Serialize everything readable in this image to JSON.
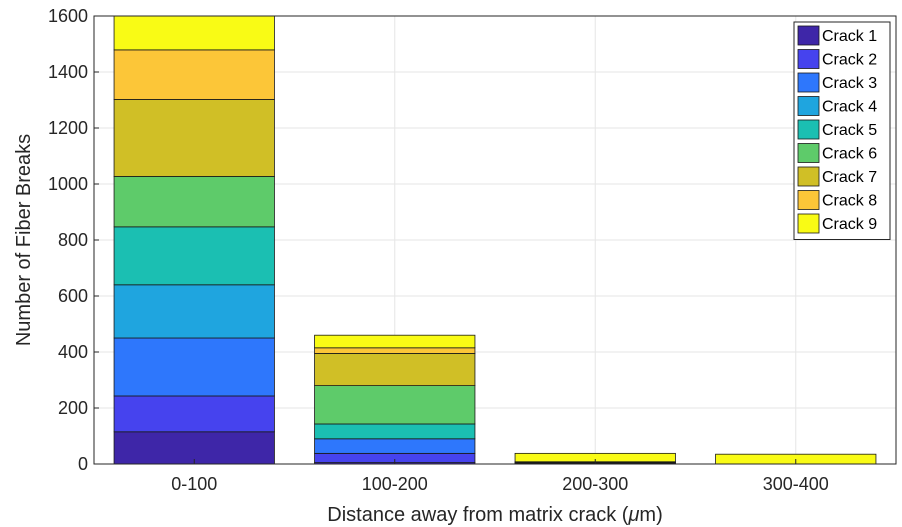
{
  "chart_data": {
    "type": "bar",
    "stacked": true,
    "title": "",
    "xlabel_prefix": "Distance away from matrix crack (",
    "xlabel_unit_greek": "μ",
    "xlabel_unit_rest": "m)",
    "ylabel": "Number of Fiber Breaks",
    "categories": [
      "0-100",
      "100-200",
      "200-300",
      "300-400"
    ],
    "ylim": [
      0,
      1600
    ],
    "yticks": [
      0,
      200,
      400,
      600,
      800,
      1000,
      1200,
      1400,
      1600
    ],
    "grid": true,
    "legend_position": "top-right",
    "series": [
      {
        "name": "Crack 1",
        "color": "#3e26a8",
        "values": [
          115,
          5,
          2,
          0
        ]
      },
      {
        "name": "Crack 2",
        "color": "#4643ee",
        "values": [
          128,
          33,
          2,
          0
        ]
      },
      {
        "name": "Crack 3",
        "color": "#2e77fc",
        "values": [
          207,
          52,
          2,
          0
        ]
      },
      {
        "name": "Crack 4",
        "color": "#1fa5df",
        "values": [
          190,
          0,
          0,
          0
        ]
      },
      {
        "name": "Crack 5",
        "color": "#1bbfb2",
        "values": [
          207,
          53,
          0,
          0
        ]
      },
      {
        "name": "Crack 6",
        "color": "#5ecb6a",
        "values": [
          180,
          137,
          0,
          0
        ]
      },
      {
        "name": "Crack 7",
        "color": "#d0bf26",
        "values": [
          275,
          115,
          0,
          0
        ]
      },
      {
        "name": "Crack 8",
        "color": "#fcc638",
        "values": [
          177,
          20,
          2,
          0
        ]
      },
      {
        "name": "Crack 9",
        "color": "#f9fb15",
        "values": [
          121,
          45,
          30,
          35
        ]
      }
    ]
  }
}
